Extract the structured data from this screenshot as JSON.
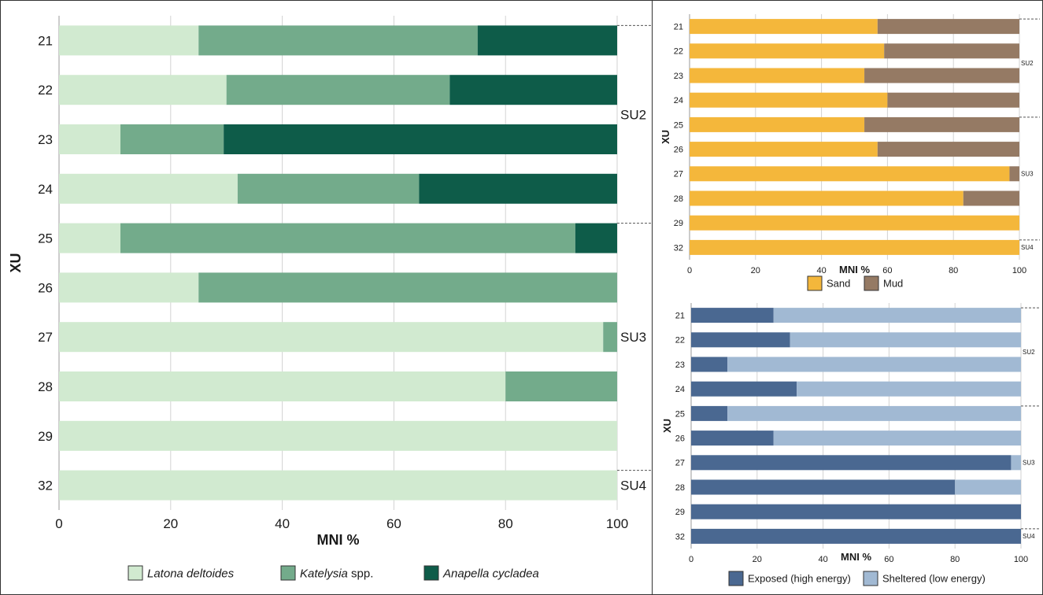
{
  "chart_data": [
    {
      "id": "species",
      "type": "bar",
      "orientation": "horizontal",
      "stacked": true,
      "categories": [
        "21",
        "22",
        "23",
        "24",
        "25",
        "26",
        "27",
        "28",
        "29",
        "32"
      ],
      "series": [
        {
          "name": "Latona deltoides",
          "italic": true,
          "color": "#d1ead0",
          "values": [
            25,
            30,
            11,
            32,
            11,
            25,
            97.5,
            80,
            100,
            100
          ]
        },
        {
          "name": "Katelysia",
          "suffix": " spp.",
          "italic": true,
          "color": "#73ab8b",
          "values": [
            50,
            40,
            18.5,
            32.5,
            81.5,
            75,
            2.5,
            20,
            0,
            0
          ]
        },
        {
          "name": "Anapella cycladea",
          "italic": true,
          "color": "#0e5c49",
          "values": [
            25,
            30,
            70.5,
            35.5,
            7.5,
            0,
            0,
            0,
            0,
            0
          ]
        }
      ],
      "units": [
        {
          "label": "SU2",
          "from": "21",
          "to": "24"
        },
        {
          "label": "SU3",
          "from": "25",
          "to": "29"
        },
        {
          "label": "SU4",
          "from": "32",
          "to": "32"
        }
      ],
      "xlabel": "MNI %",
      "ylabel": "XU",
      "xlim": [
        0,
        100
      ],
      "xticks": [
        0,
        20,
        40,
        60,
        80,
        100
      ],
      "grid": true,
      "legend": "bottom"
    },
    {
      "id": "substrate",
      "type": "bar",
      "orientation": "horizontal",
      "stacked": true,
      "categories": [
        "21",
        "22",
        "23",
        "24",
        "25",
        "26",
        "27",
        "28",
        "29",
        "32"
      ],
      "series": [
        {
          "name": "Sand",
          "color": "#f4b73b",
          "values": [
            57,
            59,
            53,
            60,
            53,
            57,
            97,
            83,
            100,
            100
          ]
        },
        {
          "name": "Mud",
          "color": "#957a64",
          "values": [
            43,
            41,
            47,
            40,
            47,
            43,
            3,
            17,
            0,
            0
          ]
        }
      ],
      "units": [
        {
          "label": "SU2",
          "from": "21",
          "to": "24"
        },
        {
          "label": "SU3",
          "from": "25",
          "to": "29"
        },
        {
          "label": "SU4",
          "from": "32",
          "to": "32"
        }
      ],
      "xlabel": "MNI %",
      "ylabel": "XU",
      "xlim": [
        0,
        100
      ],
      "xticks": [
        0,
        20,
        40,
        60,
        80,
        100
      ],
      "grid": true,
      "legend": "bottom"
    },
    {
      "id": "energy",
      "type": "bar",
      "orientation": "horizontal",
      "stacked": true,
      "categories": [
        "21",
        "22",
        "23",
        "24",
        "25",
        "26",
        "27",
        "28",
        "29",
        "32"
      ],
      "series": [
        {
          "name": "Exposed (high energy)",
          "color": "#4a6891",
          "values": [
            25,
            30,
            11,
            32,
            11,
            25,
            97,
            80,
            100,
            100
          ]
        },
        {
          "name": "Sheltered (low energy)",
          "color": "#a1b9d3",
          "values": [
            75,
            70,
            89,
            68,
            89,
            75,
            3,
            20,
            0,
            0
          ]
        }
      ],
      "units": [
        {
          "label": "SU2",
          "from": "21",
          "to": "24"
        },
        {
          "label": "SU3",
          "from": "25",
          "to": "29"
        },
        {
          "label": "SU4",
          "from": "32",
          "to": "32"
        }
      ],
      "xlabel": "MNI %",
      "ylabel": "XU",
      "xlim": [
        0,
        100
      ],
      "xticks": [
        0,
        20,
        40,
        60,
        80,
        100
      ],
      "grid": true,
      "legend": "bottom"
    }
  ]
}
